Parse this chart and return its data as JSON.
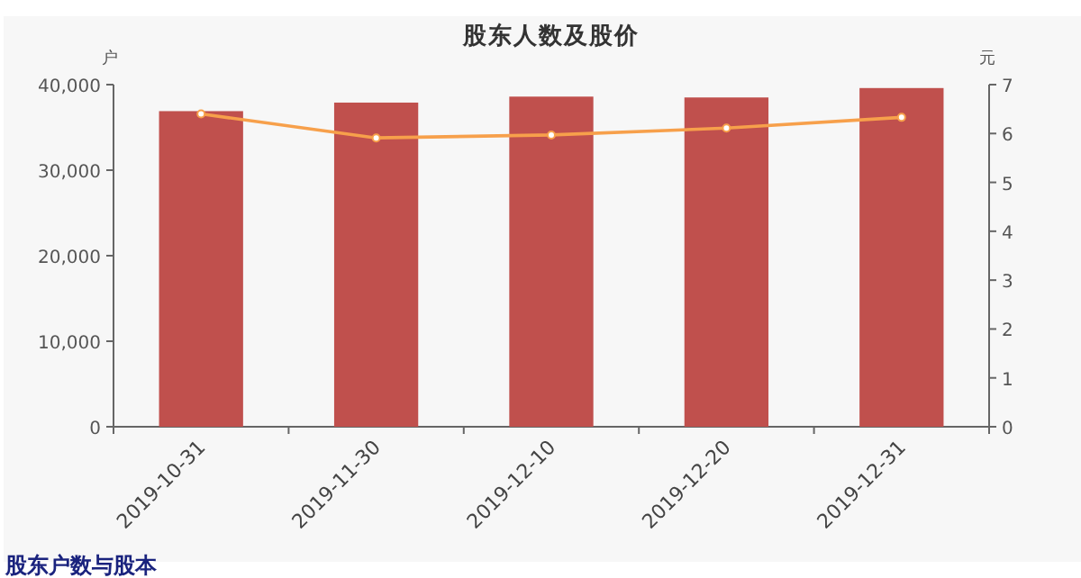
{
  "chart_data": {
    "type": "bar",
    "title": "股东人数及股价",
    "ylabel": "户",
    "y2label": "元",
    "categories": [
      "2019-10-31",
      "2019-11-30",
      "2019-12-10",
      "2019-12-20",
      "2019-12-31"
    ],
    "series": [
      {
        "color": "#c0504d",
        "values": [
          36900,
          37900,
          38600,
          38500,
          39600
        ]
      },
      {
        "type": "line",
        "axis": "y2",
        "color": "#f7a04b",
        "marker": "circle",
        "values": [
          6.4,
          5.91,
          5.97,
          6.11,
          6.33
        ]
      }
    ],
    "ylim": [
      0,
      40000
    ],
    "yticks": [
      0,
      {
        "value": 10000,
        "label": "10,000"
      },
      {
        "value": 20000,
        "label": "20,000"
      },
      {
        "value": 30000,
        "label": "30,000"
      },
      {
        "value": 40000,
        "label": "40,000"
      }
    ],
    "y2lim": [
      0,
      7
    ],
    "y2ticks": [
      0,
      1,
      2,
      3,
      4,
      5,
      6,
      7
    ],
    "grid": false,
    "annotations": [
      "股东户数与股本"
    ]
  }
}
